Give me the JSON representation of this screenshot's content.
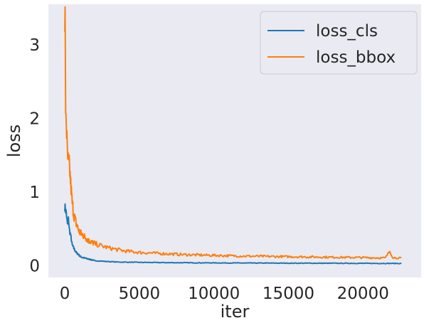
{
  "chart_data": {
    "type": "line",
    "title": "",
    "xlabel": "iter",
    "ylabel": "loss",
    "xlim": [
      -1100,
      23900
    ],
    "ylim": [
      -0.16,
      3.55
    ],
    "xticks": [
      0,
      5000,
      10000,
      15000,
      20000
    ],
    "yticks": [
      0,
      1,
      2,
      3
    ],
    "grid": false,
    "legend_position": "top-right",
    "background_color": "#eaeaf2",
    "series": [
      {
        "name": "loss_cls",
        "color": "#1f77b4",
        "x": [
          0,
          50,
          100,
          150,
          200,
          250,
          300,
          400,
          500,
          600,
          700,
          800,
          900,
          1000,
          1200,
          1400,
          1600,
          1800,
          2000,
          2300,
          2600,
          3000,
          3500,
          4000,
          5000,
          6000,
          7000,
          8000,
          9000,
          10000,
          12000,
          14000,
          16000,
          18000,
          20000,
          21000,
          22000,
          22600
        ],
        "y": [
          0.8,
          0.76,
          0.72,
          0.6,
          0.55,
          0.65,
          0.5,
          0.4,
          0.28,
          0.24,
          0.2,
          0.17,
          0.16,
          0.13,
          0.11,
          0.1,
          0.09,
          0.08,
          0.07,
          0.065,
          0.06,
          0.055,
          0.05,
          0.048,
          0.045,
          0.043,
          0.041,
          0.04,
          0.039,
          0.038,
          0.036,
          0.035,
          0.034,
          0.033,
          0.032,
          0.031,
          0.031,
          0.03
        ]
      },
      {
        "name": "loss_bbox",
        "color": "#ff7f0e",
        "x": [
          0,
          25,
          50,
          100,
          150,
          200,
          250,
          300,
          350,
          400,
          500,
          600,
          700,
          800,
          900,
          1000,
          1200,
          1400,
          1600,
          1800,
          2000,
          2300,
          2600,
          3000,
          3500,
          4000,
          5000,
          6000,
          7000,
          8000,
          9000,
          10000,
          12000,
          14000,
          16000,
          18000,
          20000,
          21500,
          21800,
          22000,
          22600
        ],
        "y": [
          3.38,
          3.2,
          2.2,
          2.0,
          1.6,
          1.45,
          1.35,
          1.35,
          1.25,
          1.1,
          0.85,
          0.7,
          0.62,
          0.55,
          0.5,
          0.45,
          0.42,
          0.38,
          0.34,
          0.32,
          0.3,
          0.28,
          0.26,
          0.24,
          0.22,
          0.2,
          0.18,
          0.17,
          0.16,
          0.15,
          0.145,
          0.14,
          0.13,
          0.125,
          0.12,
          0.115,
          0.11,
          0.105,
          0.2,
          0.11,
          0.1
        ]
      }
    ]
  }
}
